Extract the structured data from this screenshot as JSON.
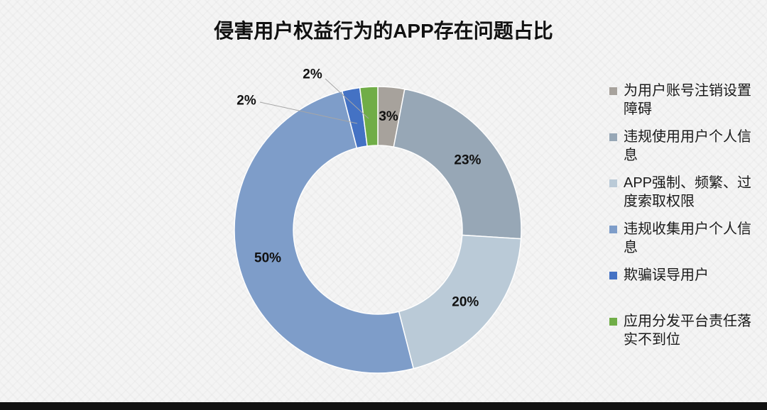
{
  "chart_data": {
    "type": "pie",
    "donut": true,
    "title": "侵害用户权益行为的APP存在问题占比",
    "categories": [
      "为用户账号注销设置障碍",
      "违规使用用户个人信息",
      "APP强制、频繁、过度索取权限",
      "违规收集用户个人信息",
      "欺骗误导用户",
      "应用分发平台责任落实不到位"
    ],
    "values": [
      3,
      23,
      20,
      50,
      2,
      2
    ],
    "data_labels": [
      "3%",
      "23%",
      "20%",
      "50%",
      "2%",
      "2%"
    ],
    "colors": [
      "#a7a29c",
      "#97a7b6",
      "#bacad7",
      "#7e9dc9",
      "#4472c4",
      "#70ad47"
    ],
    "legend_position": "right"
  }
}
